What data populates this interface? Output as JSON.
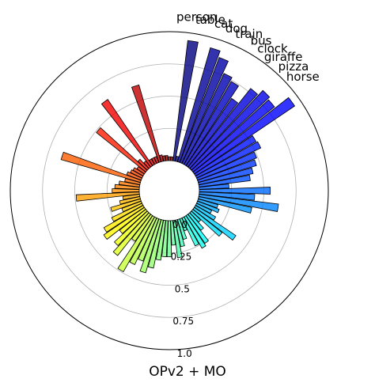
{
  "chart_data": {
    "type": "bar",
    "projection": "polar",
    "title": "OPv2 + MO",
    "radial_ticks": [
      "0.0",
      "0.25",
      "0.5",
      "0.75",
      "1.0"
    ],
    "radial_tick_values": [
      0.0,
      0.25,
      0.5,
      0.75,
      1.0
    ],
    "rlim": [
      0.0,
      1.0
    ],
    "grid": true,
    "colormap": "jet",
    "labeled_categories": [
      "person",
      "table",
      "cat",
      "dog",
      "train",
      "bus",
      "clock",
      "giraffe",
      "pizza",
      "horse"
    ],
    "values": [
      0.94,
      0.04,
      0.92,
      0.87,
      0.77,
      0.74,
      0.63,
      0.78,
      0.83,
      0.81,
      0.94,
      0.54,
      0.55,
      0.49,
      0.47,
      0.43,
      0.4,
      0.23,
      0.55,
      0.43,
      0.62,
      0.42,
      0.16,
      0.18,
      0.13,
      0.18,
      0.39,
      0.29,
      0.1,
      0.16,
      0.26,
      0.28,
      0.24,
      0.1,
      0.16,
      0.21,
      0.29,
      0.19,
      0.28,
      0.28,
      0.31,
      0.38,
      0.43,
      0.35,
      0.4,
      0.49,
      0.24,
      0.41,
      0.35,
      0.26,
      0.38,
      0.35,
      0.26,
      0.16,
      0.24,
      0.16,
      0.13,
      0.49,
      0.21,
      0.19,
      0.16,
      0.12,
      0.64,
      0.12,
      0.1,
      0.09,
      0.07,
      0.49,
      0.1,
      0.06,
      0.62,
      0.05,
      0.05,
      0.05,
      0.62,
      0.05,
      0.04,
      0.04,
      0.03,
      0.03
    ]
  }
}
